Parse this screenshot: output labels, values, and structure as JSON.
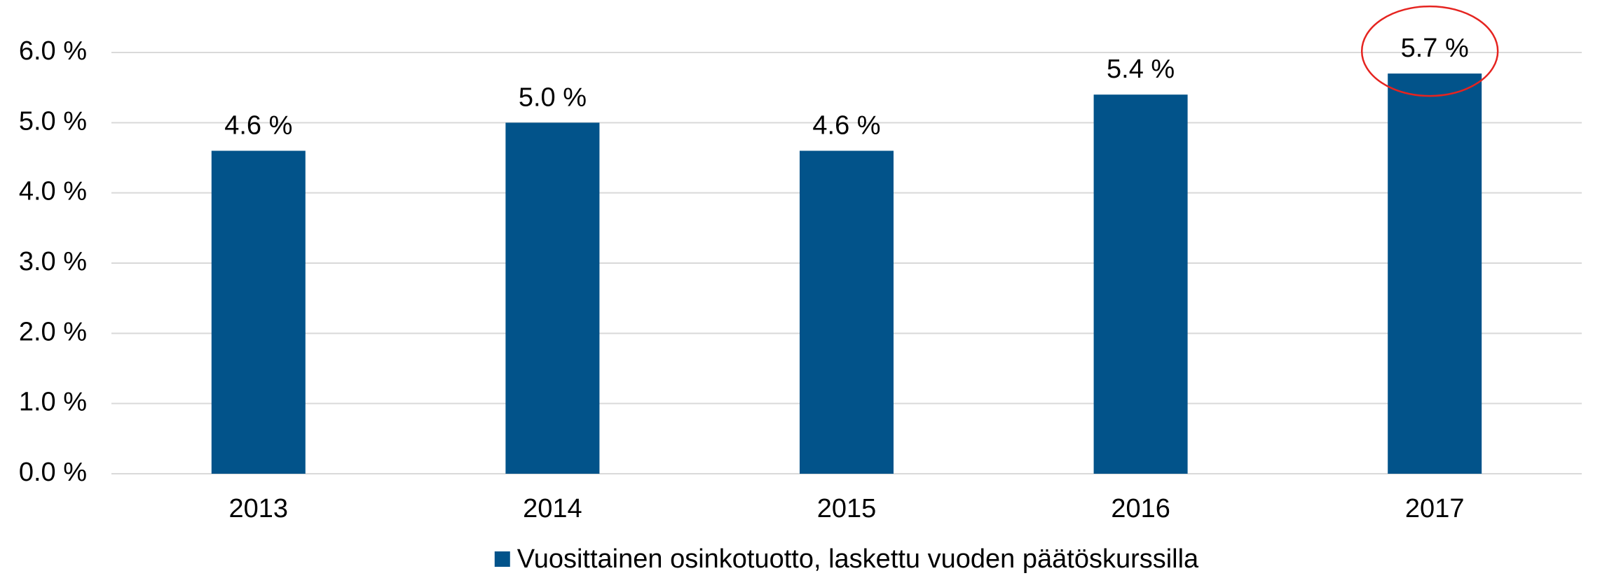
{
  "chart_data": {
    "type": "bar",
    "categories": [
      "2013",
      "2014",
      "2015",
      "2016",
      "2017"
    ],
    "series": [
      {
        "name": "Vuosittainen osinkotuotto, laskettu vuoden päätöskurssilla",
        "color": "#02538a",
        "values": [
          4.6,
          5.0,
          4.6,
          5.4,
          5.7
        ],
        "value_labels": [
          "4.6 %",
          "5.0 %",
          "4.6 %",
          "5.4 %",
          "5.7 %"
        ]
      }
    ],
    "ylim": [
      0,
      6
    ],
    "yticks": [
      {
        "value": 0,
        "label": "0.0 %"
      },
      {
        "value": 1,
        "label": "1.0 %"
      },
      {
        "value": 2,
        "label": "2.0 %"
      },
      {
        "value": 3,
        "label": "3.0 %"
      },
      {
        "value": 4,
        "label": "4.0 %"
      },
      {
        "value": 5,
        "label": "5.0 %"
      },
      {
        "value": 6,
        "label": "6.0 %"
      }
    ],
    "grid": true,
    "legend": "bottom"
  }
}
